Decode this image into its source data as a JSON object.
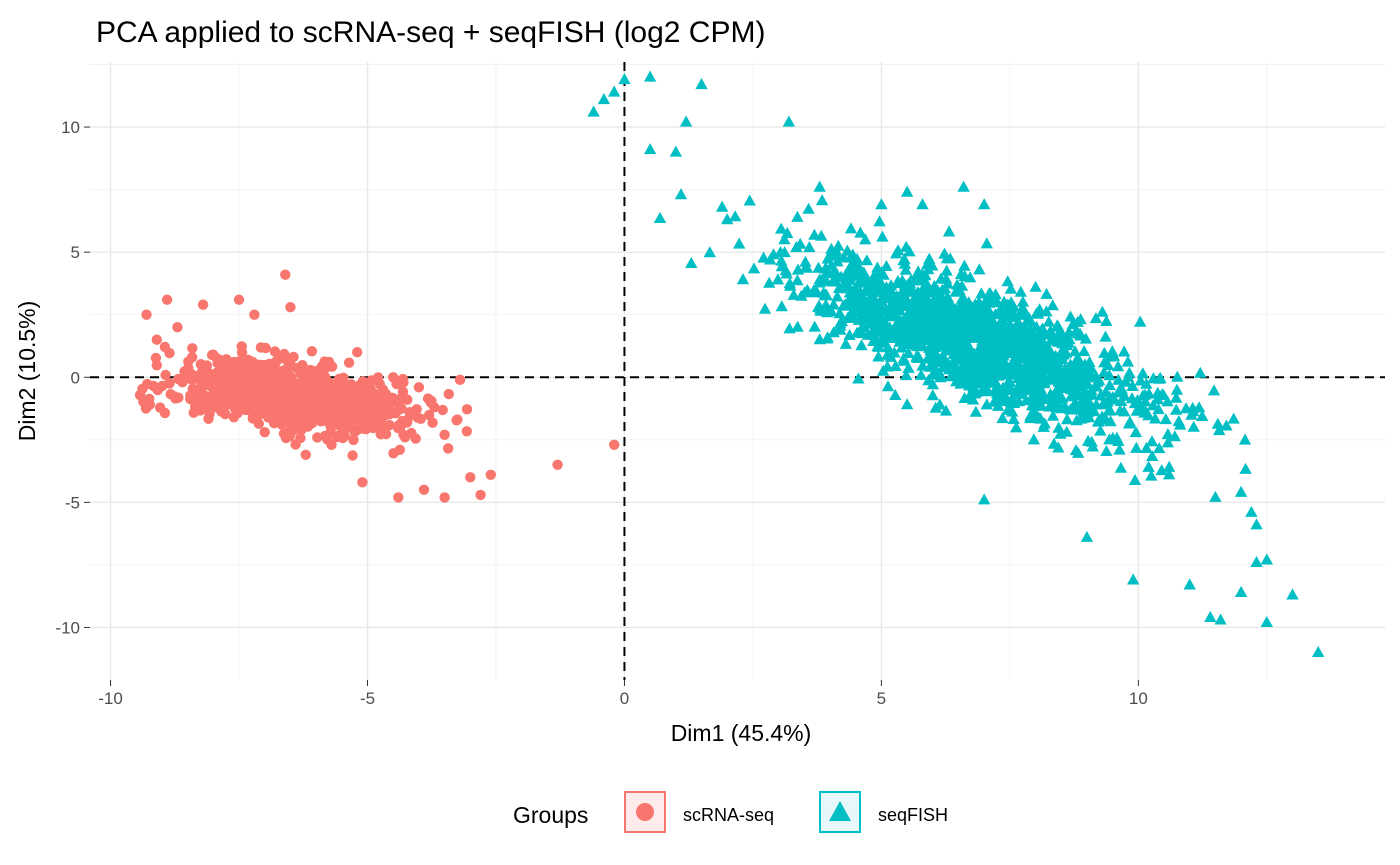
{
  "chart_data": {
    "type": "scatter",
    "title": "PCA applied to scRNA-seq + seqFISH (log2 CPM)",
    "xlabel": "Dim1 (45.4%)",
    "ylabel": "Dim2 (10.5%)",
    "xlim": [
      -10.4,
      14.8
    ],
    "ylim": [
      -12.1,
      12.6
    ],
    "x_ticks": [
      -10,
      -5,
      0,
      5,
      10
    ],
    "y_ticks": [
      -10,
      -5,
      0,
      5,
      10
    ],
    "x_tick_labels": [
      "-10",
      "-5",
      "0",
      "5",
      "10"
    ],
    "y_tick_labels": [
      "-10",
      "-5",
      "0",
      "5",
      "10"
    ],
    "grid": true,
    "reference_lines": {
      "x": 0,
      "y": 0,
      "style": "dashed"
    },
    "legend": {
      "title": "Groups",
      "position": "bottom"
    },
    "series": [
      {
        "name": "scRNA-seq",
        "marker": "circle",
        "color": "#F8766D",
        "cluster": {
          "center": [
            -6.5,
            -0.8
          ],
          "sd_major": 1.15,
          "sd_minor": 0.6,
          "slope": -0.38,
          "n": 1000
        },
        "points": [
          [
            -9.3,
            2.5
          ],
          [
            -9.1,
            1.5
          ],
          [
            -8.9,
            3.1
          ],
          [
            -8.7,
            2.0
          ],
          [
            -8.2,
            2.9
          ],
          [
            -7.5,
            3.1
          ],
          [
            -6.6,
            4.1
          ],
          [
            -6.5,
            2.8
          ],
          [
            -7.2,
            2.5
          ],
          [
            -5.2,
            1.0
          ],
          [
            -4.5,
            0.0
          ],
          [
            -4.3,
            -0.2
          ],
          [
            -3.2,
            -0.1
          ],
          [
            -4.0,
            -0.4
          ],
          [
            -3.7,
            -1.2
          ],
          [
            -3.5,
            -2.3
          ],
          [
            -4.3,
            -2.3
          ],
          [
            -3.0,
            -4.0
          ],
          [
            -2.6,
            -3.9
          ],
          [
            -2.8,
            -4.7
          ],
          [
            -3.5,
            -4.8
          ],
          [
            -3.9,
            -4.5
          ],
          [
            -4.4,
            -4.8
          ],
          [
            -5.1,
            -4.2
          ],
          [
            -6.2,
            -3.1
          ],
          [
            -8.0,
            0.9
          ],
          [
            -8.6,
            -0.2
          ],
          [
            -8.4,
            -0.9
          ],
          [
            -7.6,
            -1.6
          ],
          [
            -1.3,
            -3.5
          ],
          [
            -0.2,
            -2.7
          ]
        ]
      },
      {
        "name": "seqFISH",
        "marker": "triangle",
        "color": "#00BFC4",
        "cluster": {
          "center": [
            6.9,
            1.3
          ],
          "sd_major": 2.3,
          "sd_minor": 0.85,
          "slope": -1.0,
          "n": 1500
        },
        "points": [
          [
            -0.6,
            10.6
          ],
          [
            -0.4,
            11.1
          ],
          [
            -0.2,
            11.4
          ],
          [
            0.0,
            11.9
          ],
          [
            0.5,
            12.0
          ],
          [
            0.5,
            9.1
          ],
          [
            1.0,
            9.0
          ],
          [
            1.2,
            10.2
          ],
          [
            1.5,
            11.7
          ],
          [
            1.1,
            7.3
          ],
          [
            1.9,
            6.8
          ],
          [
            2.0,
            6.3
          ],
          [
            3.2,
            10.2
          ],
          [
            3.8,
            7.6
          ],
          [
            2.9,
            4.9
          ],
          [
            3.8,
            3.9
          ],
          [
            3.8,
            1.5
          ],
          [
            4.3,
            2.9
          ],
          [
            5.5,
            7.4
          ],
          [
            5.8,
            6.9
          ],
          [
            5.0,
            6.9
          ],
          [
            6.6,
            7.6
          ],
          [
            7.0,
            6.9
          ],
          [
            8.0,
            3.6
          ],
          [
            9.3,
            2.6
          ],
          [
            9.8,
            0.0
          ],
          [
            9.4,
            -1.0
          ],
          [
            10.2,
            -3.6
          ],
          [
            10.6,
            -3.6
          ],
          [
            12.0,
            -4.6
          ],
          [
            12.2,
            -5.4
          ],
          [
            12.3,
            -5.9
          ],
          [
            12.5,
            -7.3
          ],
          [
            12.3,
            -7.4
          ],
          [
            12.0,
            -8.6
          ],
          [
            13.0,
            -8.7
          ],
          [
            12.5,
            -9.8
          ],
          [
            13.5,
            -11.0
          ],
          [
            11.4,
            -9.6
          ],
          [
            11.6,
            -9.7
          ],
          [
            11.0,
            -8.3
          ],
          [
            9.9,
            -8.1
          ],
          [
            9.0,
            -6.4
          ],
          [
            7.0,
            -4.9
          ],
          [
            5.5,
            -1.1
          ],
          [
            6.0,
            -0.3
          ],
          [
            10.6,
            -3.9
          ],
          [
            11.5,
            -4.8
          ]
        ]
      }
    ]
  }
}
